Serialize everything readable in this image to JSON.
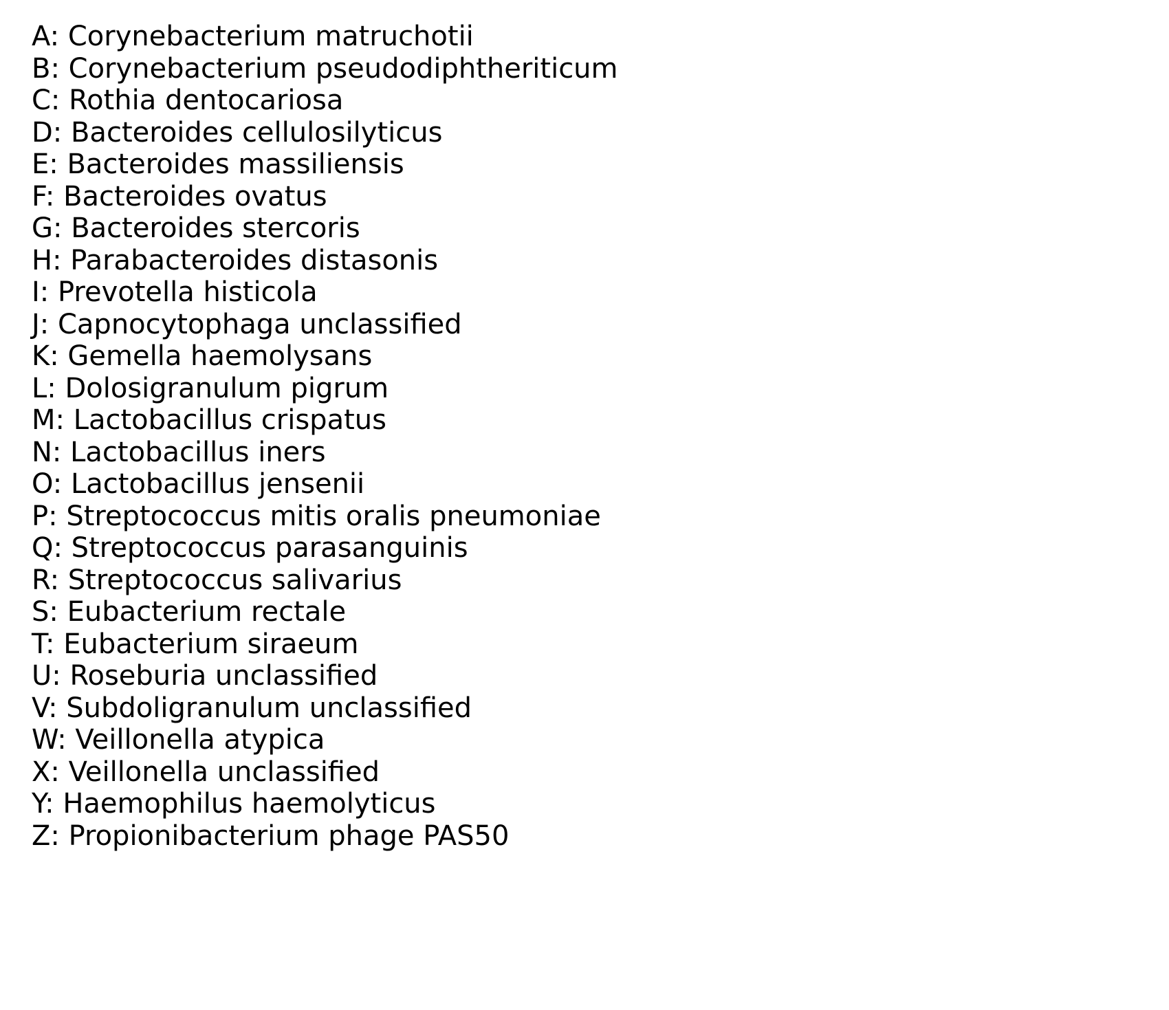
{
  "legend": {
    "items": [
      "A: Corynebacterium matruchotii",
      "B: Corynebacterium pseudodiphtheriticum",
      "C: Rothia dentocariosa",
      "D: Bacteroides cellulosilyticus",
      "E: Bacteroides massiliensis",
      "F: Bacteroides ovatus",
      "G: Bacteroides stercoris",
      "H: Parabacteroides distasonis",
      "I: Prevotella histicola",
      "J: Capnocytophaga unclassified",
      "K: Gemella haemolysans",
      "L: Dolosigranulum pigrum",
      "M: Lactobacillus crispatus",
      "N: Lactobacillus iners",
      "O: Lactobacillus jensenii",
      "P: Streptococcus mitis oralis pneumoniae",
      "Q: Streptococcus parasanguinis",
      "R: Streptococcus salivarius",
      "S: Eubacterium rectale",
      "T: Eubacterium siraeum",
      "U: Roseburia unclassified",
      "V: Subdoligranulum unclassified",
      "W: Veillonella atypica",
      "X: Veillonella unclassified",
      "Y: Haemophilus haemolyticus",
      "Z: Propionibacterium phage PAS50"
    ]
  }
}
